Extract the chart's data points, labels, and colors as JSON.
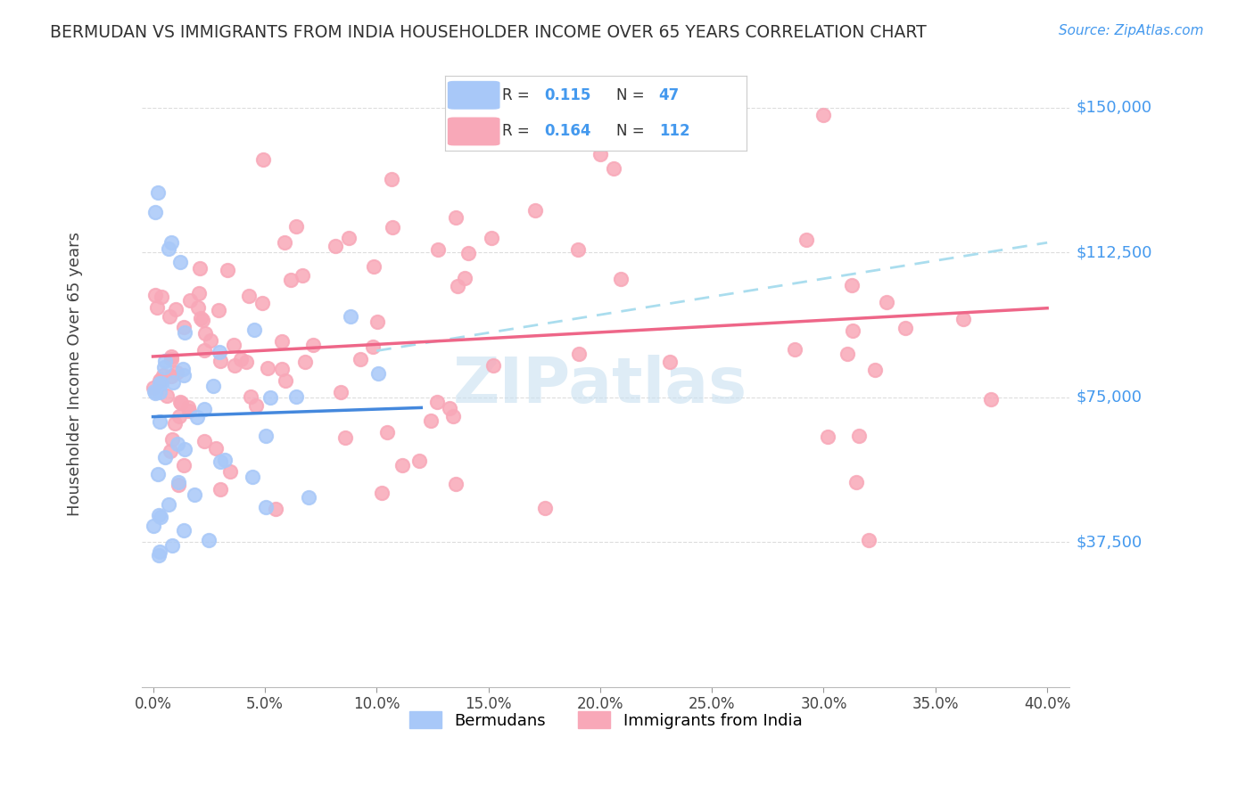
{
  "title": "BERMUDAN VS IMMIGRANTS FROM INDIA HOUSEHOLDER INCOME OVER 65 YEARS CORRELATION CHART",
  "source": "Source: ZipAtlas.com",
  "ylabel": "Householder Income Over 65 years",
  "xlabel_ticks": [
    "0.0%",
    "5.0%",
    "10.0%",
    "15.0%",
    "20.0%",
    "25.0%",
    "30.0%",
    "35.0%",
    "40.0%"
  ],
  "xlabel_vals": [
    0.0,
    5.0,
    10.0,
    15.0,
    20.0,
    25.0,
    30.0,
    35.0,
    40.0
  ],
  "ytick_labels": [
    "$37,500",
    "$75,000",
    "$112,500",
    "$150,000"
  ],
  "ytick_vals": [
    37500,
    75000,
    112500,
    150000
  ],
  "ymin": 0,
  "ymax": 162000,
  "xmin": -0.5,
  "xmax": 41.0,
  "r_bermudan": 0.115,
  "n_bermudan": 47,
  "r_india": 0.164,
  "n_india": 112,
  "bermudan_color": "#a8c8f8",
  "india_color": "#f8a8b8",
  "bermudan_line_color": "#4488dd",
  "india_line_color": "#ee6688",
  "trendline_color": "#aaddee",
  "watermark": "ZIPatlas",
  "watermark_color": "#c8e0f0",
  "legend_box_color": "#ffffff",
  "background_color": "#ffffff",
  "grid_color": "#dddddd",
  "blue_label_color": "#4499ee",
  "seed": 42
}
